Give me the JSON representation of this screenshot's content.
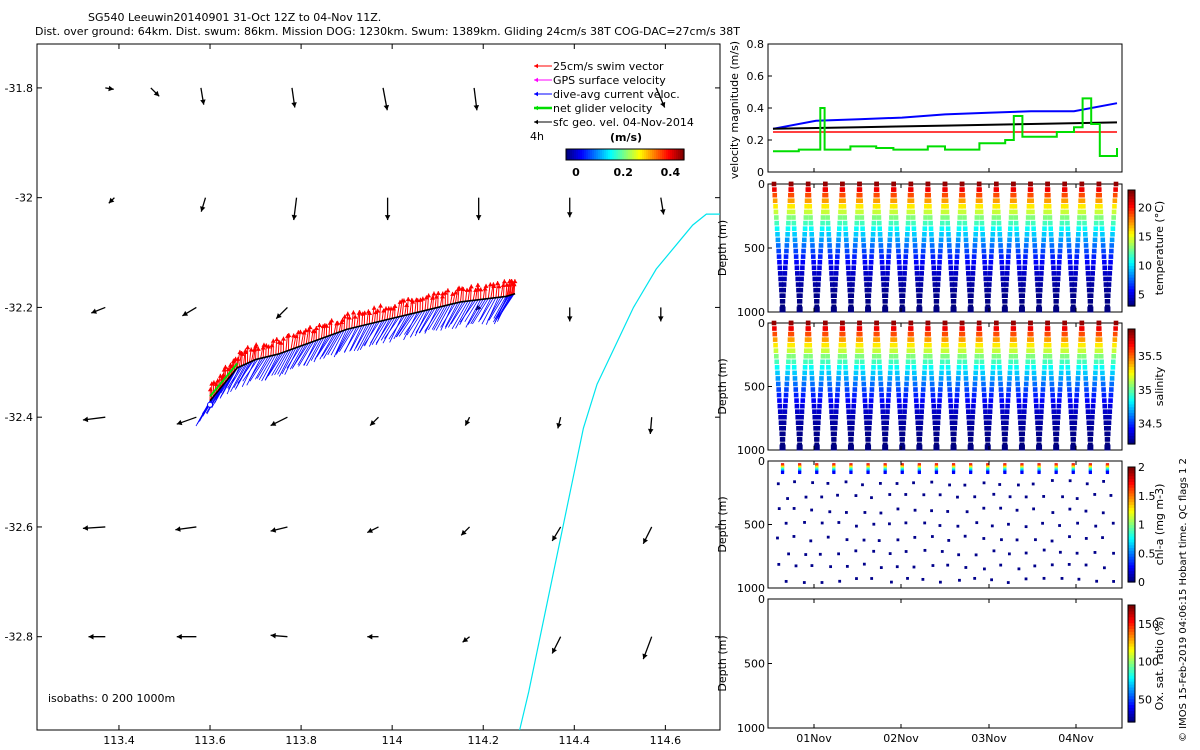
{
  "header": {
    "line1": "SG540 Leeuwin20140901 31-Oct 12Z to 04-Nov 11Z.",
    "line2": "Dist. over ground: 64km. Dist. swum: 86km. Mission DOG: 1230km. Swum: 1389km. Gliding 24cm/s 38T COG-DAC=27cm/s 38T"
  },
  "footer_credit": "© IMOS 15-Feb-2019 04:06:15 Hobart time. QC flags 1  2",
  "colors": {
    "swim": "#ff0000",
    "gps": "#ff00ff",
    "dac": "#0000ff",
    "net": "#00dd00",
    "sfc": "#000000",
    "coast": "#00e5ee"
  },
  "chart_data": [
    {
      "type": "scatter",
      "subtype": "map-quiver",
      "xlim": [
        113.22,
        114.72
      ],
      "ylim": [
        -32.97,
        -31.72
      ],
      "xticks": [
        113.4,
        113.6,
        113.8,
        114,
        114.2,
        114.4,
        114.6
      ],
      "xtick_labels": [
        "113.4",
        "113.6",
        "113.8",
        "114",
        "114.2",
        "114.4",
        "114.6"
      ],
      "yticks": [
        -31.8,
        -32,
        -32.2,
        -32.4,
        -32.6,
        -32.8
      ],
      "ytick_labels": [
        "-31.8",
        "-32",
        "-32.2",
        "-32.4",
        "-32.6",
        "-32.8"
      ],
      "legend": {
        "placement": "top-right",
        "entries": [
          "25cm/s swim vector",
          "GPS surface velocity",
          "dive-avg current veloc.",
          "net glider velocity",
          "sfc geo. vel. 04-Nov-2014"
        ],
        "time_label": "4h"
      },
      "colorbar": {
        "title": "(m/s)",
        "ticks": [
          "0",
          "0.2",
          "0.4"
        ],
        "range": [
          0,
          0.5
        ]
      },
      "isobaths_label": "isobaths: 0   200  1000m",
      "sfc_vectors": [
        {
          "lon": 113.37,
          "lat": -31.8,
          "u": 0.3,
          "v": -0.05
        },
        {
          "lon": 113.47,
          "lat": -31.8,
          "u": 0.3,
          "v": -0.3
        },
        {
          "lon": 113.58,
          "lat": -31.8,
          "u": 0.1,
          "v": -0.6
        },
        {
          "lon": 113.78,
          "lat": -31.8,
          "u": 0.1,
          "v": -0.7
        },
        {
          "lon": 113.98,
          "lat": -31.8,
          "u": 0.15,
          "v": -0.8
        },
        {
          "lon": 114.18,
          "lat": -31.8,
          "u": 0.1,
          "v": -0.8
        },
        {
          "lon": 114.58,
          "lat": -31.8,
          "u": 0.3,
          "v": -0.7
        },
        {
          "lon": 113.39,
          "lat": -32.0,
          "u": -0.2,
          "v": -0.2
        },
        {
          "lon": 113.59,
          "lat": -32.0,
          "u": -0.15,
          "v": -0.5
        },
        {
          "lon": 113.79,
          "lat": -32.0,
          "u": -0.1,
          "v": -0.8
        },
        {
          "lon": 113.99,
          "lat": -32.0,
          "u": 0.0,
          "v": -0.8
        },
        {
          "lon": 114.19,
          "lat": -32.0,
          "u": 0.0,
          "v": -0.8
        },
        {
          "lon": 114.39,
          "lat": -32.0,
          "u": 0.0,
          "v": -0.7
        },
        {
          "lon": 114.59,
          "lat": -32.0,
          "u": 0.1,
          "v": -0.6
        },
        {
          "lon": 113.37,
          "lat": -32.2,
          "u": -0.5,
          "v": -0.2
        },
        {
          "lon": 113.57,
          "lat": -32.2,
          "u": -0.5,
          "v": -0.3
        },
        {
          "lon": 113.77,
          "lat": -32.2,
          "u": -0.4,
          "v": -0.4
        },
        {
          "lon": 114.19,
          "lat": -32.2,
          "u": -0.1,
          "v": -0.1
        },
        {
          "lon": 114.39,
          "lat": -32.2,
          "u": 0.0,
          "v": -0.5
        },
        {
          "lon": 114.59,
          "lat": -32.2,
          "u": 0.0,
          "v": -0.5
        },
        {
          "lon": 113.37,
          "lat": -32.4,
          "u": -0.8,
          "v": -0.1
        },
        {
          "lon": 113.57,
          "lat": -32.4,
          "u": -0.7,
          "v": -0.25
        },
        {
          "lon": 113.77,
          "lat": -32.4,
          "u": -0.6,
          "v": -0.3
        },
        {
          "lon": 113.97,
          "lat": -32.4,
          "u": -0.3,
          "v": -0.3
        },
        {
          "lon": 114.17,
          "lat": -32.4,
          "u": -0.15,
          "v": -0.3
        },
        {
          "lon": 114.37,
          "lat": -32.4,
          "u": -0.1,
          "v": -0.4
        },
        {
          "lon": 114.57,
          "lat": -32.4,
          "u": -0.05,
          "v": -0.6
        },
        {
          "lon": 113.37,
          "lat": -32.6,
          "u": -0.8,
          "v": -0.05
        },
        {
          "lon": 113.57,
          "lat": -32.6,
          "u": -0.75,
          "v": -0.1
        },
        {
          "lon": 113.77,
          "lat": -32.6,
          "u": -0.6,
          "v": -0.15
        },
        {
          "lon": 113.97,
          "lat": -32.6,
          "u": -0.4,
          "v": -0.2
        },
        {
          "lon": 114.17,
          "lat": -32.6,
          "u": -0.3,
          "v": -0.3
        },
        {
          "lon": 114.37,
          "lat": -32.6,
          "u": -0.3,
          "v": -0.5
        },
        {
          "lon": 114.57,
          "lat": -32.6,
          "u": -0.3,
          "v": -0.6
        },
        {
          "lon": 113.37,
          "lat": -32.8,
          "u": -0.6,
          "v": 0.0
        },
        {
          "lon": 113.57,
          "lat": -32.8,
          "u": -0.7,
          "v": 0.0
        },
        {
          "lon": 113.77,
          "lat": -32.8,
          "u": -0.6,
          "v": 0.05
        },
        {
          "lon": 113.97,
          "lat": -32.8,
          "u": -0.4,
          "v": 0.0
        },
        {
          "lon": 114.17,
          "lat": -32.8,
          "u": -0.25,
          "v": -0.2
        },
        {
          "lon": 114.37,
          "lat": -32.8,
          "u": -0.3,
          "v": -0.6
        },
        {
          "lon": 114.57,
          "lat": -32.8,
          "u": -0.3,
          "v": -0.8
        }
      ],
      "glider_track": [
        [
          113.6,
          -32.37
        ],
        [
          113.63,
          -32.34
        ],
        [
          113.66,
          -32.31
        ],
        [
          113.7,
          -32.295
        ],
        [
          113.75,
          -32.285
        ],
        [
          113.8,
          -32.27
        ],
        [
          113.85,
          -32.255
        ],
        [
          113.9,
          -32.24
        ],
        [
          113.95,
          -32.23
        ],
        [
          114.0,
          -32.22
        ],
        [
          114.05,
          -32.21
        ],
        [
          114.1,
          -32.2
        ],
        [
          114.15,
          -32.19
        ],
        [
          114.2,
          -32.185
        ],
        [
          114.25,
          -32.18
        ],
        [
          114.27,
          -32.175
        ]
      ],
      "coastline": [
        [
          114.28,
          -32.97
        ],
        [
          114.3,
          -32.9
        ],
        [
          114.32,
          -32.82
        ],
        [
          114.34,
          -32.74
        ],
        [
          114.36,
          -32.66
        ],
        [
          114.38,
          -32.58
        ],
        [
          114.4,
          -32.5
        ],
        [
          114.42,
          -32.42
        ],
        [
          114.45,
          -32.34
        ],
        [
          114.49,
          -32.27
        ],
        [
          114.53,
          -32.2
        ],
        [
          114.58,
          -32.13
        ],
        [
          114.63,
          -32.08
        ],
        [
          114.66,
          -32.05
        ],
        [
          114.69,
          -32.03
        ],
        [
          114.72,
          -32.03
        ]
      ]
    },
    {
      "type": "line",
      "ylabel": "velocity magnitude (m/s)",
      "ylim": [
        0,
        0.8
      ],
      "yticks": [
        "0",
        "0.2",
        "0.4",
        "0.6",
        "0.8"
      ],
      "series": [
        {
          "x": [
            0,
            0.5,
            1,
            1.5,
            2,
            2.5,
            3,
            3.5,
            4
          ],
          "values": [
            0.27,
            0.32,
            0.33,
            0.34,
            0.36,
            0.37,
            0.38,
            0.38,
            0.43
          ]
        },
        {
          "x": [
            0,
            1,
            2,
            3,
            4
          ],
          "values": [
            0.27,
            0.28,
            0.29,
            0.3,
            0.31
          ]
        },
        {
          "x": [
            0,
            4
          ],
          "values": [
            0.25,
            0.25
          ]
        },
        {
          "x": [
            0,
            0.3,
            0.5,
            0.55,
            0.6,
            0.9,
            1.2,
            1.4,
            1.8,
            2.0,
            2.4,
            2.7,
            2.8,
            2.9,
            3.2,
            3.3,
            3.5,
            3.6,
            3.7,
            3.8,
            4.0
          ],
          "values": [
            0.13,
            0.14,
            0.14,
            0.4,
            0.14,
            0.16,
            0.15,
            0.14,
            0.16,
            0.14,
            0.18,
            0.2,
            0.35,
            0.22,
            0.22,
            0.25,
            0.28,
            0.46,
            0.3,
            0.1,
            0.15
          ]
        }
      ]
    },
    {
      "type": "scatter",
      "ylabel": "Depth (m)",
      "yticks": [
        "0",
        "500",
        "1000"
      ],
      "ylim": [
        1000,
        0
      ],
      "colorbar_label": "temperature (°C)",
      "colorbar_ticks": [
        "5",
        "10",
        "15",
        "20"
      ],
      "crange": [
        3,
        23
      ]
    },
    {
      "type": "scatter",
      "ylabel": "Depth (m)",
      "yticks": [
        "0",
        "500",
        "1000"
      ],
      "ylim": [
        1000,
        0
      ],
      "colorbar_label": "salinity",
      "colorbar_ticks": [
        "34.5",
        "35",
        "35.5"
      ],
      "crange": [
        34.2,
        35.9
      ]
    },
    {
      "type": "scatter",
      "ylabel": "Depth (m)",
      "yticks": [
        "0",
        "500",
        "1000"
      ],
      "ylim": [
        1000,
        0
      ],
      "colorbar_label": "chl-a (mg m-3)",
      "colorbar_ticks": [
        "0",
        "0.5",
        "1",
        "1.5",
        "2"
      ],
      "crange": [
        0,
        2
      ]
    },
    {
      "type": "scatter",
      "ylabel": "Depth (m)",
      "yticks": [
        "0",
        "500",
        "1000"
      ],
      "ylim": [
        1000,
        0
      ],
      "colorbar_label": "Ox. sat. ratio (%)",
      "colorbar_ticks": [
        "50",
        "100",
        "150"
      ],
      "crange": [
        20,
        175
      ],
      "xtick_labels": [
        "01Nov",
        "02Nov",
        "03Nov",
        "04Nov"
      ]
    }
  ]
}
